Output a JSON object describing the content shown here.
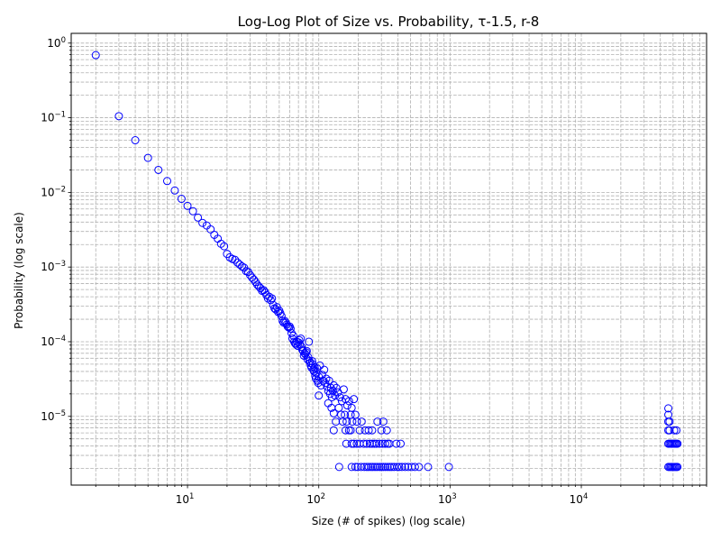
{
  "chart_data": {
    "type": "scatter",
    "title": "Log-Log Plot of Size vs. Probability, τ-1.5, r-8",
    "xlabel": "Size (# of spikes) (log scale)",
    "ylabel": "Probability (log scale)",
    "x_scale": "log",
    "y_scale": "log",
    "xlim": [
      1.3,
      90000
    ],
    "ylim": [
      1.2e-06,
      1.35
    ],
    "grid": "both (major and minor), dashed",
    "marker": "open circle",
    "colors": {
      "marker_edge": "#0000ff",
      "grid": "#b0b0b0",
      "axes": "#000000"
    },
    "x_tick_labels": [
      {
        "value": 10,
        "base": "10",
        "exp": "1"
      },
      {
        "value": 100,
        "base": "10",
        "exp": "2"
      },
      {
        "value": 1000,
        "base": "10",
        "exp": "3"
      },
      {
        "value": 10000,
        "base": "10",
        "exp": "4"
      }
    ],
    "y_tick_labels": [
      {
        "value": 1e-05,
        "base": "10",
        "exp": "−5"
      },
      {
        "value": 0.0001,
        "base": "10",
        "exp": "−4"
      },
      {
        "value": 0.001,
        "base": "10",
        "exp": "−3"
      },
      {
        "value": 0.01,
        "base": "10",
        "exp": "−2"
      },
      {
        "value": 0.1,
        "base": "10",
        "exp": "−1"
      },
      {
        "value": 1,
        "base": "10",
        "exp": "0"
      }
    ],
    "points": [
      [
        2,
        0.69
      ],
      [
        3,
        0.105
      ],
      [
        4,
        0.05
      ],
      [
        5,
        0.029
      ],
      [
        6,
        0.02
      ],
      [
        7,
        0.0142
      ],
      [
        8,
        0.0106
      ],
      [
        9,
        0.0082
      ],
      [
        10,
        0.0066
      ],
      [
        11,
        0.0056
      ],
      [
        12,
        0.0046
      ],
      [
        13,
        0.0039
      ],
      [
        14,
        0.0036
      ],
      [
        15,
        0.0032
      ],
      [
        16,
        0.0027
      ],
      [
        17,
        0.0024
      ],
      [
        18,
        0.00205
      ],
      [
        19,
        0.0019
      ],
      [
        20,
        0.0015
      ],
      [
        21,
        0.00135
      ],
      [
        22,
        0.00128
      ],
      [
        23,
        0.00125
      ],
      [
        24,
        0.00115
      ],
      [
        25,
        0.00108
      ],
      [
        26,
        0.00102
      ],
      [
        27,
        0.00098
      ],
      [
        28,
        0.00088
      ],
      [
        29,
        0.00086
      ],
      [
        30,
        0.00078
      ],
      [
        31,
        0.00072
      ],
      [
        32,
        0.00068
      ],
      [
        33,
        0.00063
      ],
      [
        34,
        0.00058
      ],
      [
        35,
        0.00055
      ],
      [
        36,
        0.00052
      ],
      [
        37,
        0.00048
      ],
      [
        38,
        0.00049
      ],
      [
        39,
        0.00046
      ],
      [
        40,
        0.00042
      ],
      [
        41,
        0.00038
      ],
      [
        42,
        0.0004
      ],
      [
        43,
        0.00036
      ],
      [
        44,
        0.00038
      ],
      [
        45,
        0.00031
      ],
      [
        46,
        0.00028
      ],
      [
        47,
        0.00027
      ],
      [
        48,
        0.00029
      ],
      [
        49,
        0.00025
      ],
      [
        50,
        0.00026
      ],
      [
        51,
        0.00024
      ],
      [
        52,
        0.00022
      ],
      [
        53,
        0.00019
      ],
      [
        54,
        0.00018
      ],
      [
        55,
        0.00019
      ],
      [
        56,
        0.00018
      ],
      [
        57,
        0.00017
      ],
      [
        58,
        0.00016
      ],
      [
        59,
        0.000155
      ],
      [
        60,
        0.00016
      ],
      [
        61,
        0.00015
      ],
      [
        62,
        0.00013
      ],
      [
        63,
        0.00011
      ],
      [
        64,
        0.00012
      ],
      [
        65,
        0.0001
      ],
      [
        66,
        9.5e-05
      ],
      [
        67,
        9.2e-05
      ],
      [
        68,
        0.0001
      ],
      [
        69,
        8.8e-05
      ],
      [
        70,
        9.8e-05
      ],
      [
        71,
        0.000105
      ],
      [
        72,
        9.2e-05
      ],
      [
        73,
        0.00011
      ],
      [
        74,
        8.5e-05
      ],
      [
        75,
        7.8e-05
      ],
      [
        76,
        7.5e-05
      ],
      [
        77,
        6.5e-05
      ],
      [
        78,
        7e-05
      ],
      [
        79,
        6.8e-05
      ],
      [
        80,
        7.2e-05
      ],
      [
        81,
        7.5e-05
      ],
      [
        82,
        5.8e-05
      ],
      [
        83,
        6.2e-05
      ],
      [
        84,
        0.0001
      ],
      [
        85,
        5.5e-05
      ],
      [
        86,
        5.2e-05
      ],
      [
        87,
        4.8e-05
      ],
      [
        88,
        4.5e-05
      ],
      [
        89,
        5.5e-05
      ],
      [
        90,
        5e-05
      ],
      [
        91,
        4.2e-05
      ],
      [
        92,
        4e-05
      ],
      [
        93,
        4.5e-05
      ],
      [
        94,
        3.5e-05
      ],
      [
        95,
        3.2e-05
      ],
      [
        96,
        3.8e-05
      ],
      [
        97,
        4.4e-05
      ],
      [
        98,
        3e-05
      ],
      [
        99,
        2.8e-05
      ],
      [
        100,
        3.4e-05
      ],
      [
        102,
        4.8e-05
      ],
      [
        104,
        2.6e-05
      ],
      [
        106,
        3.6e-05
      ],
      [
        108,
        3e-05
      ],
      [
        110,
        4.2e-05
      ],
      [
        112,
        2.8e-05
      ],
      [
        114,
        3.2e-05
      ],
      [
        116,
        2.5e-05
      ],
      [
        118,
        2.2e-05
      ],
      [
        120,
        3e-05
      ],
      [
        122,
        2e-05
      ],
      [
        124,
        2.4e-05
      ],
      [
        126,
        1.8e-05
      ],
      [
        128,
        2.2e-05
      ],
      [
        130,
        2.6e-05
      ],
      [
        133,
        1.9e-05
      ],
      [
        136,
        2.4e-05
      ],
      [
        140,
        2.1e-05
      ],
      [
        145,
        1.8e-05
      ],
      [
        150,
        1.6e-05
      ],
      [
        155,
        2.3e-05
      ],
      [
        160,
        1.7e-05
      ],
      [
        165,
        1.4e-05
      ],
      [
        170,
        1.6e-05
      ],
      [
        178,
        1.3e-05
      ],
      [
        185,
        1.7e-05
      ],
      [
        100,
        1.9e-05
      ],
      [
        118,
        1.5e-05
      ],
      [
        125,
        1.3e-05
      ],
      [
        130,
        1.1e-05
      ],
      [
        135,
        8.5e-06
      ],
      [
        142,
        1.3e-05
      ],
      [
        148,
        1.05e-05
      ],
      [
        152,
        8.5e-06
      ],
      [
        158,
        1.05e-05
      ],
      [
        163,
        8.5e-06
      ],
      [
        170,
        6.5e-06
      ],
      [
        175,
        1.05e-05
      ],
      [
        180,
        8.5e-06
      ],
      [
        190,
        1.05e-05
      ],
      [
        195,
        8.5e-06
      ],
      [
        205,
        6.5e-06
      ],
      [
        212,
        8.5e-06
      ],
      [
        225,
        6.5e-06
      ],
      [
        240,
        6.5e-06
      ],
      [
        255,
        6.5e-06
      ],
      [
        280,
        8.5e-06
      ],
      [
        300,
        6.5e-06
      ],
      [
        310,
        8.5e-06
      ],
      [
        330,
        6.5e-06
      ],
      [
        130,
        6.5e-06
      ],
      [
        160,
        6.5e-06
      ],
      [
        175,
        6.5e-06
      ],
      [
        162,
        4.3e-06
      ],
      [
        178,
        4.3e-06
      ],
      [
        185,
        4.3e-06
      ],
      [
        195,
        4.3e-06
      ],
      [
        205,
        4.3e-06
      ],
      [
        220,
        4.3e-06
      ],
      [
        232,
        4.3e-06
      ],
      [
        245,
        4.3e-06
      ],
      [
        255,
        4.3e-06
      ],
      [
        265,
        4.3e-06
      ],
      [
        275,
        4.3e-06
      ],
      [
        290,
        4.3e-06
      ],
      [
        305,
        4.3e-06
      ],
      [
        320,
        4.3e-06
      ],
      [
        335,
        4.3e-06
      ],
      [
        345,
        4.3e-06
      ],
      [
        390,
        4.3e-06
      ],
      [
        420,
        4.3e-06
      ],
      [
        143,
        2.1e-06
      ],
      [
        178,
        2.1e-06
      ],
      [
        190,
        2.1e-06
      ],
      [
        198,
        2.1e-06
      ],
      [
        210,
        2.1e-06
      ],
      [
        222,
        2.1e-06
      ],
      [
        232,
        2.1e-06
      ],
      [
        240,
        2.1e-06
      ],
      [
        250,
        2.1e-06
      ],
      [
        258,
        2.1e-06
      ],
      [
        268,
        2.1e-06
      ],
      [
        278,
        2.1e-06
      ],
      [
        290,
        2.1e-06
      ],
      [
        300,
        2.1e-06
      ],
      [
        310,
        2.1e-06
      ],
      [
        322,
        2.1e-06
      ],
      [
        335,
        2.1e-06
      ],
      [
        348,
        2.1e-06
      ],
      [
        360,
        2.1e-06
      ],
      [
        375,
        2.1e-06
      ],
      [
        395,
        2.1e-06
      ],
      [
        410,
        2.1e-06
      ],
      [
        430,
        2.1e-06
      ],
      [
        455,
        2.1e-06
      ],
      [
        480,
        2.1e-06
      ],
      [
        510,
        2.1e-06
      ],
      [
        540,
        2.1e-06
      ],
      [
        580,
        2.1e-06
      ],
      [
        680,
        2.1e-06
      ],
      [
        980,
        2.1e-06
      ],
      [
        46000,
        1.28e-05
      ],
      [
        46000,
        1.05e-05
      ],
      [
        46000,
        8.5e-06
      ],
      [
        47000,
        8.5e-06
      ],
      [
        46000,
        6.5e-06
      ],
      [
        47000,
        6.5e-06
      ],
      [
        51000,
        6.5e-06
      ],
      [
        53000,
        6.5e-06
      ],
      [
        46000,
        4.3e-06
      ],
      [
        47000,
        4.3e-06
      ],
      [
        48000,
        4.3e-06
      ],
      [
        49000,
        4.3e-06
      ],
      [
        50000,
        4.3e-06
      ],
      [
        51000,
        4.3e-06
      ],
      [
        52000,
        4.3e-06
      ],
      [
        53000,
        4.3e-06
      ],
      [
        54000,
        4.3e-06
      ],
      [
        46000,
        2.1e-06
      ],
      [
        47000,
        2.1e-06
      ],
      [
        48000,
        2.1e-06
      ],
      [
        49000,
        2.1e-06
      ],
      [
        50000,
        2.1e-06
      ],
      [
        51000,
        2.1e-06
      ],
      [
        52000,
        2.1e-06
      ],
      [
        53000,
        2.1e-06
      ],
      [
        54000,
        2.1e-06
      ]
    ]
  }
}
